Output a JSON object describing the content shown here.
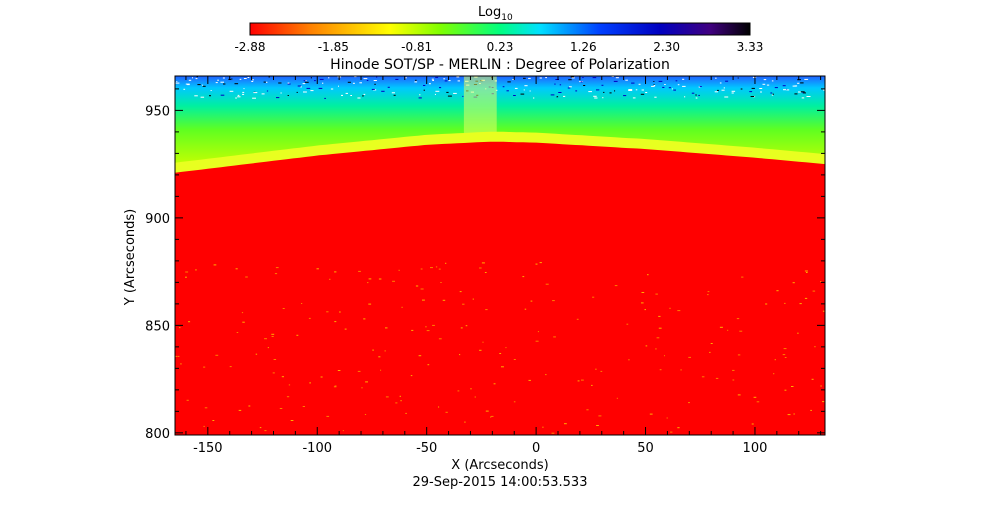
{
  "chart_data": {
    "type": "heatmap",
    "title": "Hinode SOT/SP - MERLIN : Degree of Polarization",
    "subtitle": "29-Sep-2015 14:00:53.533",
    "xlabel": "X (Arcseconds)",
    "ylabel": "Y (Arcseconds)",
    "xlim": [
      -165,
      132
    ],
    "ylim": [
      799,
      966
    ],
    "x_ticks": [
      -150,
      -100,
      -50,
      0,
      50,
      100
    ],
    "y_ticks": [
      800,
      850,
      900,
      950
    ],
    "colorbar": {
      "label_base": "Log",
      "label_subscript": "10",
      "min": -2.88,
      "max": 3.33,
      "ticks": [
        "-2.88",
        "-1.85",
        "-0.81",
        "0.23",
        "1.26",
        "2.30",
        "3.33"
      ],
      "colormap": [
        "#ff0000",
        "#ff8000",
        "#ffff00",
        "#80ff00",
        "#00ff80",
        "#00c8ff",
        "#0040ff",
        "#0000c0",
        "#400080",
        "#000000"
      ]
    },
    "limb_profile": {
      "description_units": "arcsec",
      "x": [
        -165,
        -100,
        -50,
        -20,
        0,
        50,
        100,
        132
      ],
      "y": [
        921,
        929,
        934,
        935.5,
        935,
        932,
        928,
        925
      ]
    },
    "colors": {
      "disk": "#ff0000",
      "limb_band": "#ffff00",
      "off_limb": "#80ff00",
      "far_off_limb": "#00c0ff"
    }
  }
}
